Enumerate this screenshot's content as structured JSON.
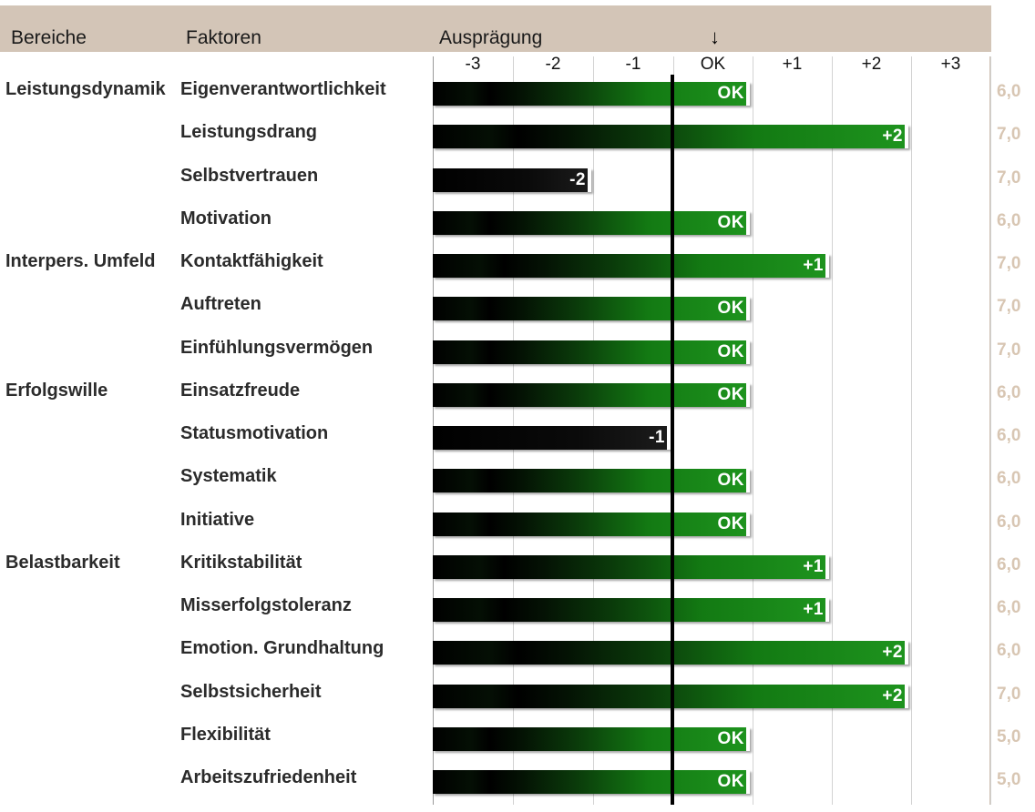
{
  "header": {
    "col_areas": "Bereiche",
    "col_factors": "Faktoren",
    "col_scale": "Ausprägung",
    "marker": "↓"
  },
  "colors": {
    "header_bg": "#d3c5b7",
    "positive_bar": "#1e941e",
    "negative_bar": "#000000",
    "score_text": "#d8c6b3"
  },
  "chart_data": {
    "type": "bar",
    "orientation": "horizontal",
    "scale_ticks": [
      "-3",
      "-2",
      "-1",
      "OK",
      "+1",
      "+2",
      "+3"
    ],
    "xlim": [
      -3,
      3
    ],
    "reference": "OK",
    "rows": [
      {
        "area": "Leistungsdynamik",
        "factor": "Eigenverantwortlichkeit",
        "value": 0,
        "label": "OK",
        "score": "6,0"
      },
      {
        "area": "",
        "factor": "Leistungsdrang",
        "value": 2,
        "label": "+2",
        "score": "7,0"
      },
      {
        "area": "",
        "factor": "Selbstvertrauen",
        "value": -2,
        "label": "-2",
        "score": "7,0"
      },
      {
        "area": "",
        "factor": "Motivation",
        "value": 0,
        "label": "OK",
        "score": "6,0"
      },
      {
        "area": "Interpers. Umfeld",
        "factor": "Kontaktfähigkeit",
        "value": 1,
        "label": "+1",
        "score": "7,0"
      },
      {
        "area": "",
        "factor": "Auftreten",
        "value": 0,
        "label": "OK",
        "score": "7,0"
      },
      {
        "area": "",
        "factor": "Einfühlungsvermögen",
        "value": 0,
        "label": "OK",
        "score": "7,0"
      },
      {
        "area": "Erfolgswille",
        "factor": "Einsatzfreude",
        "value": 0,
        "label": "OK",
        "score": "6,0"
      },
      {
        "area": "",
        "factor": "Statusmotivation",
        "value": -1,
        "label": "-1",
        "score": "6,0"
      },
      {
        "area": "",
        "factor": "Systematik",
        "value": 0,
        "label": "OK",
        "score": "6,0"
      },
      {
        "area": "",
        "factor": "Initiative",
        "value": 0,
        "label": "OK",
        "score": "6,0"
      },
      {
        "area": "Belastbarkeit",
        "factor": "Kritikstabilität",
        "value": 1,
        "label": "+1",
        "score": "6,0"
      },
      {
        "area": "",
        "factor": "Misserfolgstoleranz",
        "value": 1,
        "label": "+1",
        "score": "6,0"
      },
      {
        "area": "",
        "factor": "Emotion. Grundhaltung",
        "value": 2,
        "label": "+2",
        "score": "6,0"
      },
      {
        "area": "",
        "factor": "Selbstsicherheit",
        "value": 2,
        "label": "+2",
        "score": "7,0"
      },
      {
        "area": "",
        "factor": "Flexibilität",
        "value": 0,
        "label": "OK",
        "score": "5,0"
      },
      {
        "area": "",
        "factor": "Arbeitszufriedenheit",
        "value": 0,
        "label": "OK",
        "score": "5,0"
      }
    ]
  }
}
